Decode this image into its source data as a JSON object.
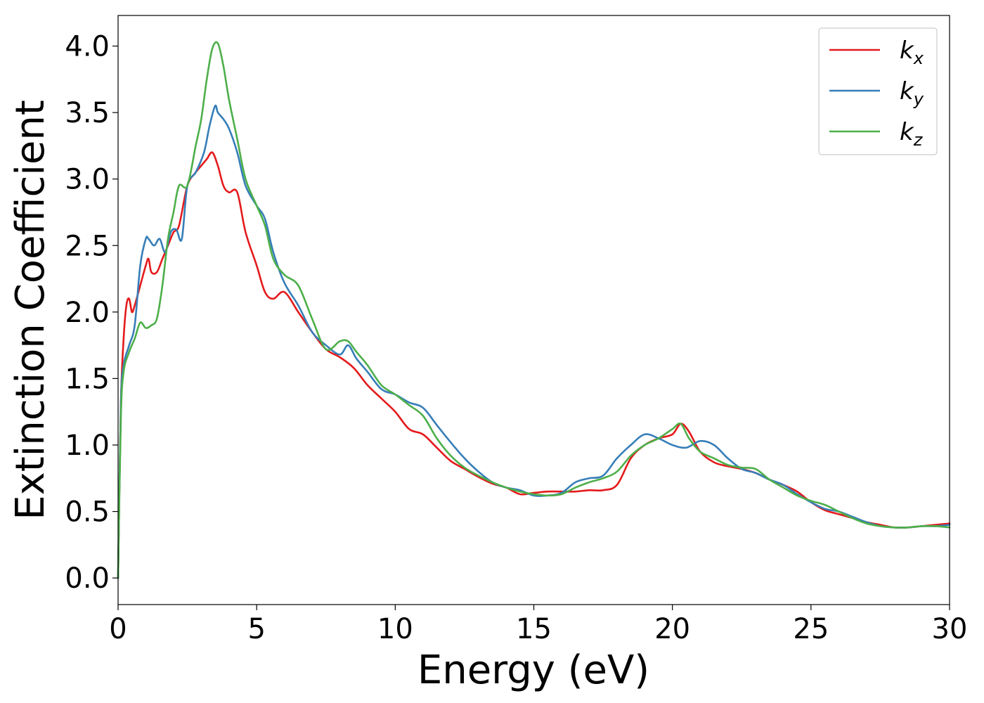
{
  "chart_data": {
    "type": "line",
    "xlabel": "Energy (eV)",
    "ylabel": "Extinction Coefficient",
    "xlim": [
      0,
      30
    ],
    "ylim": [
      -0.2,
      4.23
    ],
    "xticks": [
      0,
      5,
      10,
      15,
      20,
      25,
      30
    ],
    "yticks": [
      0.0,
      0.5,
      1.0,
      1.5,
      2.0,
      2.5,
      3.0,
      3.5,
      4.0
    ],
    "xtick_labels": [
      "0",
      "5",
      "10",
      "15",
      "20",
      "25",
      "30"
    ],
    "ytick_labels": [
      "0.0",
      "0.5",
      "1.0",
      "1.5",
      "2.0",
      "2.5",
      "3.0",
      "3.5",
      "4.0"
    ],
    "grid": false,
    "legend_position": "top-right",
    "series": [
      {
        "name": "k",
        "subscript": "x",
        "color": "#e41a1c",
        "x": [
          0,
          0.1,
          0.2,
          0.3,
          0.4,
          0.5,
          0.6,
          0.8,
          1.0,
          1.1,
          1.2,
          1.4,
          1.6,
          1.8,
          2.0,
          2.2,
          2.5,
          2.8,
          3.0,
          3.2,
          3.4,
          3.6,
          3.8,
          4.0,
          4.3,
          4.6,
          5.0,
          5.3,
          5.6,
          6.0,
          6.5,
          7.0,
          7.5,
          8.0,
          8.5,
          9.0,
          9.5,
          10.0,
          10.5,
          11.0,
          11.5,
          12.0,
          12.5,
          13.0,
          13.5,
          14.0,
          14.5,
          15.0,
          15.5,
          16.0,
          16.5,
          17.0,
          17.5,
          18.0,
          18.5,
          19.0,
          19.5,
          20.0,
          20.3,
          20.6,
          21.0,
          21.5,
          22.0,
          22.5,
          23.0,
          23.5,
          24.0,
          24.5,
          25.0,
          25.5,
          26.0,
          26.5,
          27.0,
          27.5,
          28.0,
          28.5,
          29.0,
          29.5,
          30.0
        ],
        "y": [
          0.0,
          1.3,
          1.8,
          2.05,
          2.1,
          2.0,
          2.05,
          2.2,
          2.35,
          2.4,
          2.3,
          2.3,
          2.4,
          2.5,
          2.6,
          2.65,
          2.95,
          3.05,
          3.1,
          3.15,
          3.2,
          3.1,
          2.95,
          2.9,
          2.9,
          2.6,
          2.35,
          2.15,
          2.1,
          2.15,
          2.0,
          1.85,
          1.72,
          1.66,
          1.58,
          1.45,
          1.35,
          1.25,
          1.12,
          1.08,
          0.98,
          0.88,
          0.82,
          0.76,
          0.71,
          0.68,
          0.63,
          0.64,
          0.65,
          0.65,
          0.65,
          0.66,
          0.66,
          0.7,
          0.9,
          1.0,
          1.05,
          1.08,
          1.16,
          1.1,
          0.95,
          0.87,
          0.84,
          0.82,
          0.79,
          0.74,
          0.7,
          0.65,
          0.57,
          0.51,
          0.48,
          0.45,
          0.42,
          0.4,
          0.38,
          0.38,
          0.39,
          0.4,
          0.41
        ]
      },
      {
        "name": "k",
        "subscript": "y",
        "color": "#377eb8",
        "x": [
          0,
          0.1,
          0.2,
          0.4,
          0.6,
          0.8,
          1.0,
          1.1,
          1.3,
          1.5,
          1.7,
          1.9,
          2.1,
          2.3,
          2.5,
          2.8,
          3.1,
          3.3,
          3.5,
          3.6,
          3.8,
          4.0,
          4.3,
          4.6,
          5.0,
          5.3,
          5.6,
          6.0,
          6.5,
          7.0,
          7.5,
          8.0,
          8.3,
          8.6,
          9.0,
          9.5,
          10.0,
          10.5,
          11.0,
          11.5,
          12.0,
          12.5,
          13.0,
          13.5,
          14.0,
          14.5,
          15.0,
          15.5,
          16.0,
          16.5,
          17.0,
          17.5,
          18.0,
          18.5,
          19.0,
          19.5,
          20.0,
          20.5,
          21.0,
          21.5,
          22.0,
          22.5,
          23.0,
          23.5,
          24.0,
          24.5,
          25.0,
          25.5,
          26.0,
          26.5,
          27.0,
          27.5,
          28.0,
          28.5,
          29.0,
          29.5,
          30.0
        ],
        "y": [
          0.0,
          1.3,
          1.6,
          1.75,
          1.9,
          2.35,
          2.55,
          2.55,
          2.5,
          2.55,
          2.45,
          2.6,
          2.62,
          2.55,
          2.95,
          3.05,
          3.2,
          3.4,
          3.55,
          3.5,
          3.45,
          3.38,
          3.2,
          2.95,
          2.8,
          2.7,
          2.45,
          2.22,
          2.05,
          1.85,
          1.75,
          1.68,
          1.75,
          1.65,
          1.55,
          1.42,
          1.38,
          1.32,
          1.28,
          1.15,
          1.02,
          0.9,
          0.8,
          0.72,
          0.68,
          0.66,
          0.62,
          0.62,
          0.64,
          0.72,
          0.75,
          0.77,
          0.9,
          1.0,
          1.08,
          1.05,
          1.0,
          0.98,
          1.03,
          1.0,
          0.9,
          0.82,
          0.79,
          0.74,
          0.7,
          0.63,
          0.57,
          0.52,
          0.5,
          0.46,
          0.42,
          0.39,
          0.38,
          0.38,
          0.39,
          0.39,
          0.4
        ]
      },
      {
        "name": "k",
        "subscript": "z",
        "color": "#4daf4a",
        "x": [
          0,
          0.1,
          0.2,
          0.4,
          0.6,
          0.8,
          1.0,
          1.2,
          1.4,
          1.6,
          1.8,
          2.0,
          2.2,
          2.5,
          2.8,
          3.0,
          3.2,
          3.4,
          3.6,
          3.8,
          4.0,
          4.3,
          4.6,
          5.0,
          5.3,
          5.6,
          6.0,
          6.5,
          7.0,
          7.5,
          8.0,
          8.3,
          8.6,
          9.0,
          9.5,
          10.0,
          10.5,
          11.0,
          11.5,
          12.0,
          12.5,
          13.0,
          13.5,
          14.0,
          14.5,
          15.0,
          15.5,
          16.0,
          16.5,
          17.0,
          17.5,
          18.0,
          18.5,
          19.0,
          19.5,
          20.0,
          20.3,
          20.6,
          21.0,
          21.5,
          22.0,
          22.5,
          23.0,
          23.5,
          24.0,
          24.5,
          25.0,
          25.5,
          26.0,
          26.5,
          27.0,
          27.5,
          28.0,
          28.5,
          29.0,
          29.5,
          30.0
        ],
        "y": [
          0.0,
          1.2,
          1.55,
          1.7,
          1.8,
          1.92,
          1.88,
          1.9,
          1.95,
          2.2,
          2.55,
          2.75,
          2.95,
          2.95,
          3.25,
          3.45,
          3.75,
          3.98,
          4.02,
          3.85,
          3.6,
          3.3,
          3.0,
          2.8,
          2.65,
          2.4,
          2.28,
          2.2,
          1.95,
          1.72,
          1.78,
          1.78,
          1.7,
          1.6,
          1.45,
          1.38,
          1.3,
          1.22,
          1.05,
          0.92,
          0.83,
          0.77,
          0.72,
          0.68,
          0.65,
          0.63,
          0.62,
          0.63,
          0.68,
          0.72,
          0.75,
          0.8,
          0.92,
          1.0,
          1.05,
          1.12,
          1.16,
          1.05,
          0.95,
          0.9,
          0.85,
          0.83,
          0.82,
          0.74,
          0.68,
          0.62,
          0.58,
          0.55,
          0.5,
          0.45,
          0.41,
          0.39,
          0.38,
          0.38,
          0.39,
          0.39,
          0.38
        ]
      }
    ]
  }
}
